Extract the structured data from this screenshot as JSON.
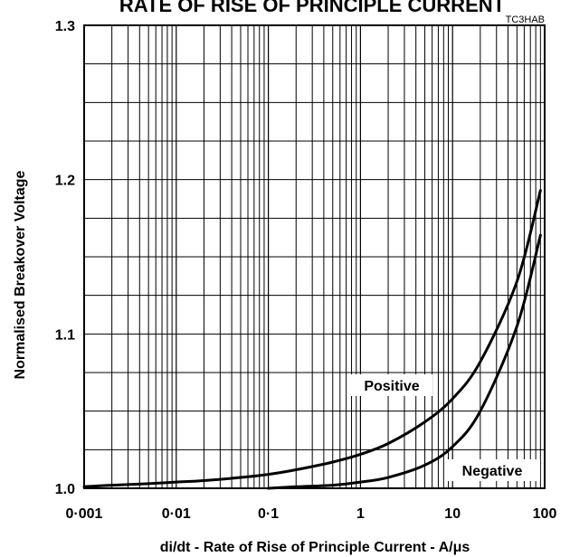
{
  "chart_data": {
    "type": "line",
    "title": "RATE OF RISE OF PRINCIPLE CURRENT",
    "figure_code": "TC3HAB",
    "xlabel": "di/dt - Rate of Rise of Principle Current - A/μs",
    "ylabel": "Normalised Breakover Voltage",
    "xscale": "log",
    "xlim": [
      0.001,
      100
    ],
    "ylim": [
      1.0,
      1.3
    ],
    "x_ticks": [
      0.001,
      0.01,
      0.1,
      1,
      10,
      100
    ],
    "x_tick_labels": [
      "0·001",
      "0·01",
      "0·1",
      "1",
      "10",
      "100"
    ],
    "y_ticks": [
      1.0,
      1.1,
      1.2,
      1.3
    ],
    "y_tick_labels": [
      "1.0",
      "1.1",
      "1.2",
      "1.3"
    ],
    "grid": true,
    "series": [
      {
        "name": "Positive",
        "x": [
          0.001,
          0.002,
          0.005,
          0.01,
          0.02,
          0.05,
          0.1,
          0.2,
          0.5,
          1,
          2,
          5,
          10,
          20,
          50,
          90
        ],
        "y": [
          1.001,
          1.002,
          1.003,
          1.004,
          1.005,
          1.007,
          1.009,
          1.012,
          1.017,
          1.022,
          1.029,
          1.043,
          1.058,
          1.082,
          1.134,
          1.193
        ]
      },
      {
        "name": "Negative",
        "x": [
          0.1,
          0.2,
          0.5,
          1,
          2,
          5,
          10,
          20,
          50,
          90
        ],
        "y": [
          1.0,
          1.001,
          1.002,
          1.004,
          1.007,
          1.015,
          1.027,
          1.05,
          1.105,
          1.164
        ]
      }
    ]
  }
}
